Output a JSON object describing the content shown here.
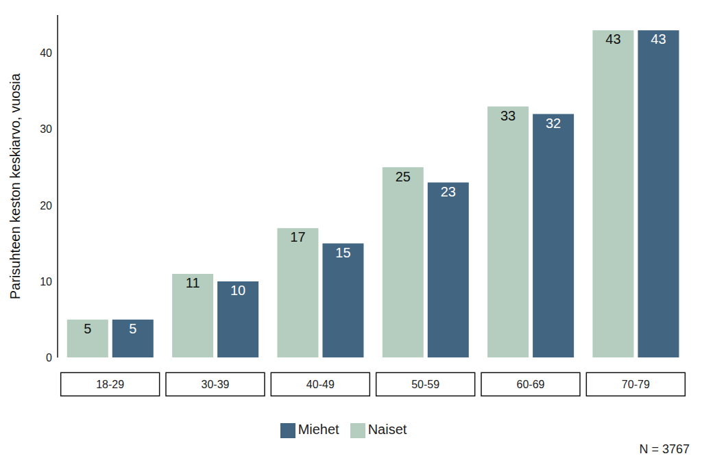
{
  "chart_data": {
    "type": "bar",
    "categories": [
      "18-29",
      "30-39",
      "40-49",
      "50-59",
      "60-69",
      "70-79"
    ],
    "series": [
      {
        "name": "Naiset",
        "color": "#b5cdbf",
        "values": [
          5,
          11,
          17,
          25,
          33,
          43
        ]
      },
      {
        "name": "Miehet",
        "color": "#426582",
        "values": [
          5,
          10,
          15,
          23,
          32,
          43
        ]
      }
    ],
    "y_label": "Parisuhteen keston keskiarvo, vuosia",
    "ylim": [
      0,
      45
    ],
    "yticks": [
      0,
      10,
      20,
      30,
      40
    ],
    "grid": false,
    "legend": "bottom",
    "data_labels": true,
    "annotation": "N = 3767"
  }
}
